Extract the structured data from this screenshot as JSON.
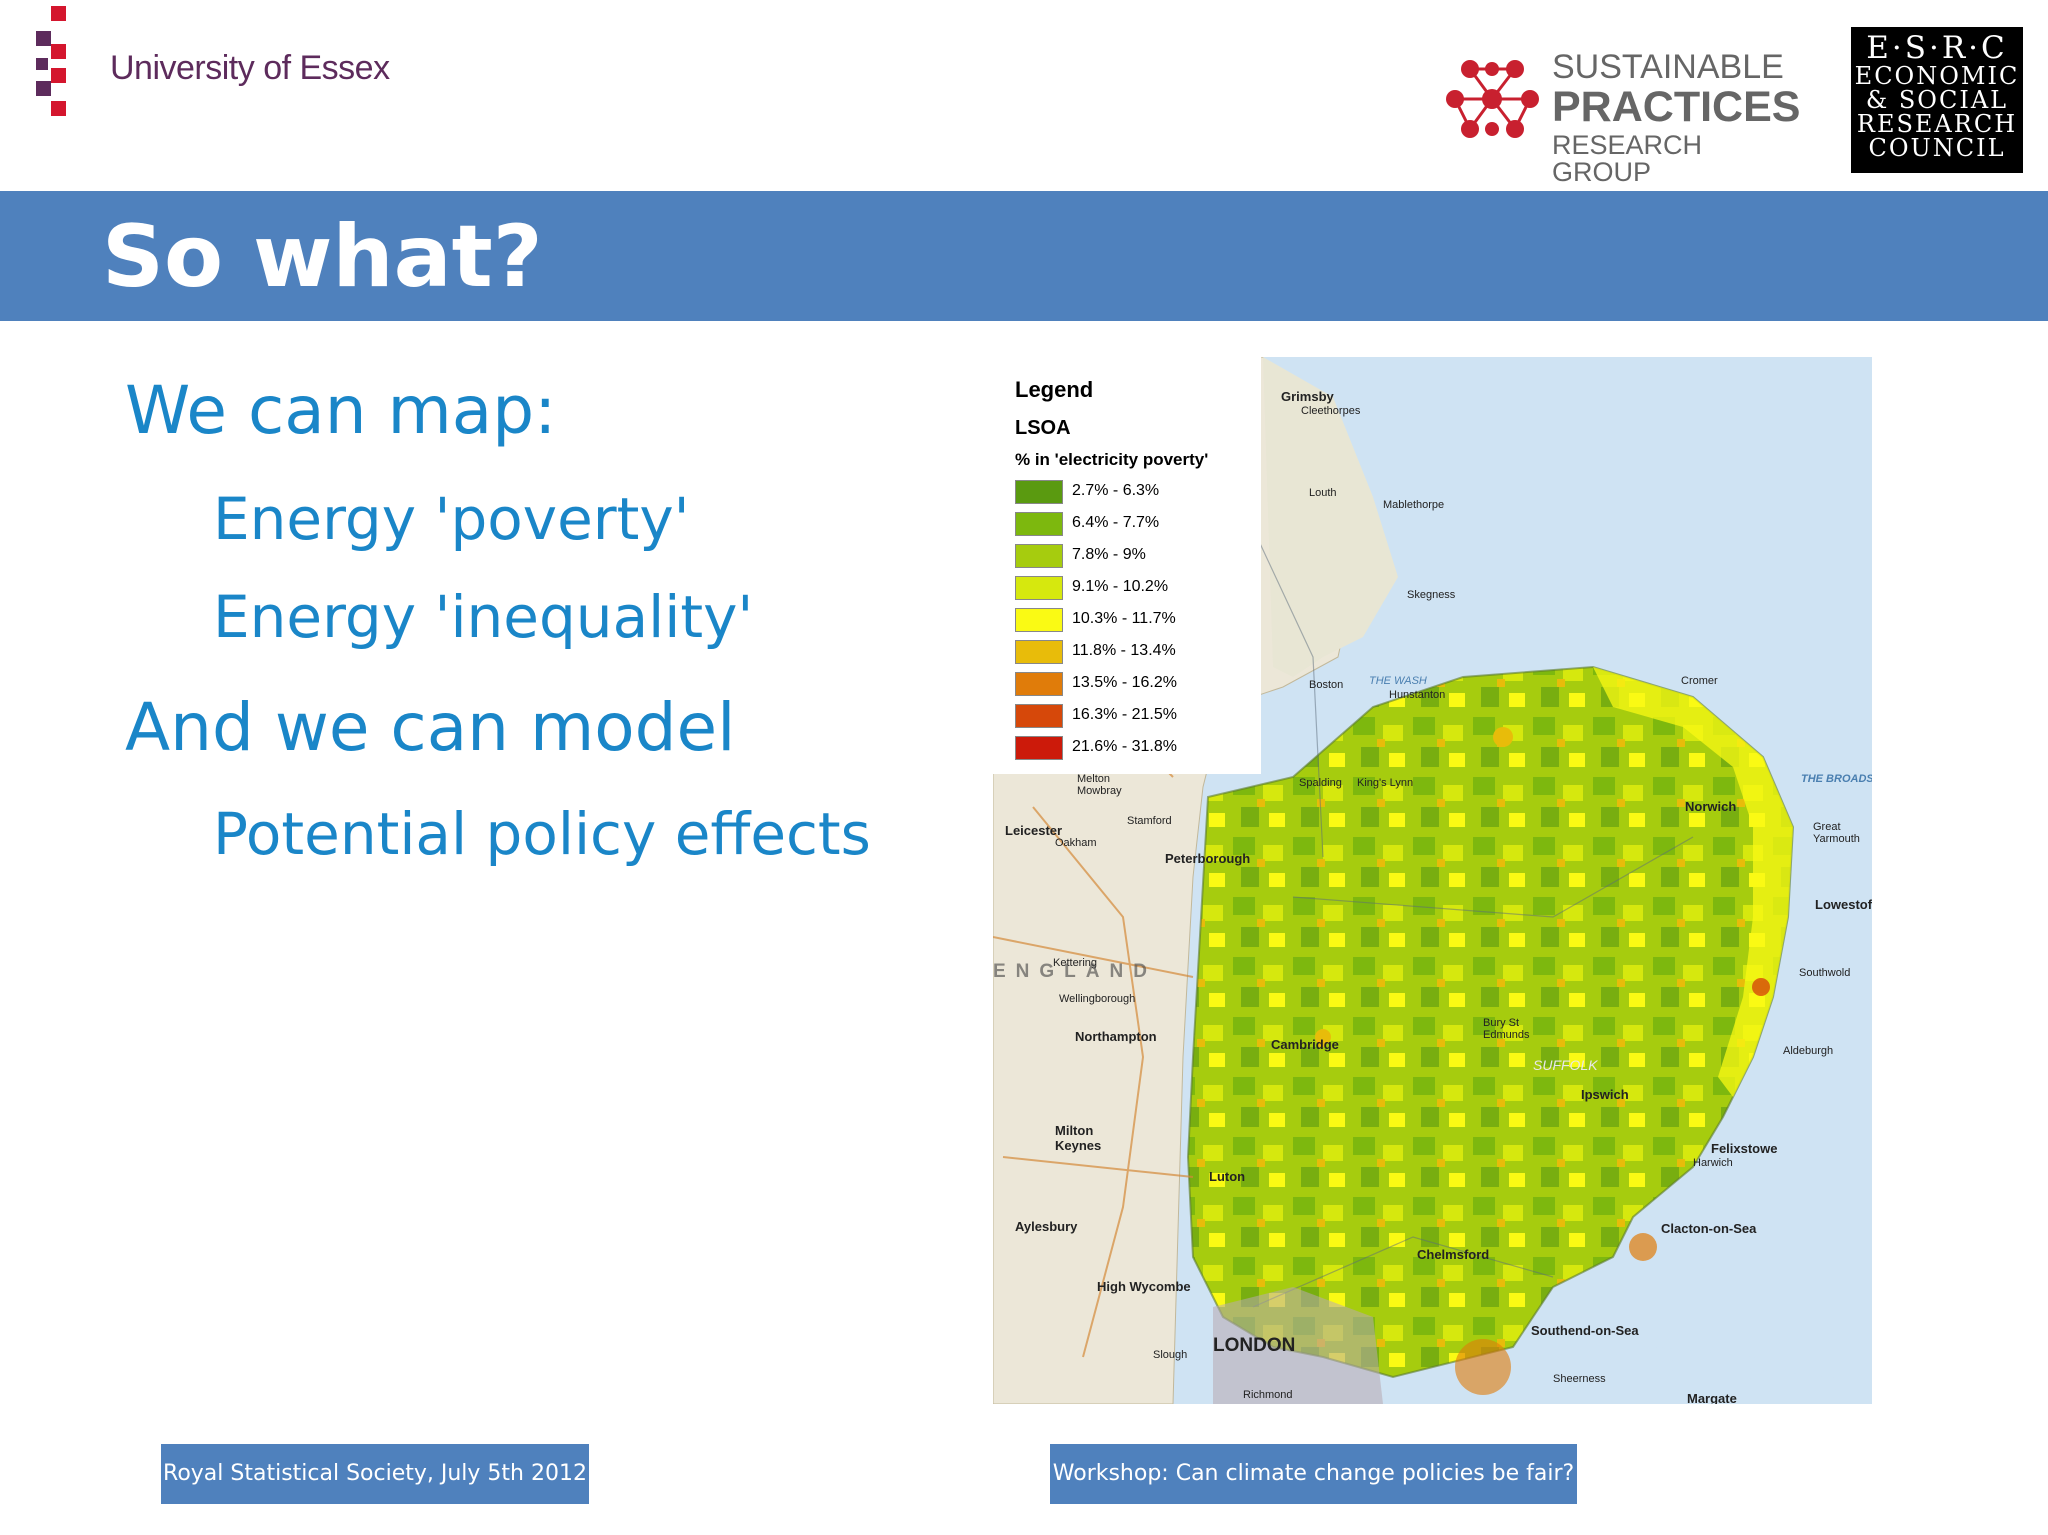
{
  "header": {
    "university": "University of Essex",
    "sprg_line1": "SUSTAINABLE",
    "sprg_line2": "PRACTICES",
    "sprg_line3": "RESEARCH GROUP",
    "esrc_line1": "E·S·R·C",
    "esrc_line2": "ECONOMIC",
    "esrc_line3": "& SOCIAL",
    "esrc_line4": "RESEARCH",
    "esrc_line5": "COUNCIL"
  },
  "title": "So what?",
  "bullets": {
    "b1": "We can map:",
    "b2": "Energy 'poverty'",
    "b3": "Energy 'inequality'",
    "b4": "And we can model",
    "b5": "Potential policy effects"
  },
  "legend": {
    "title": "Legend",
    "layer": "LSOA",
    "metric": "% in 'electricity poverty'",
    "items": [
      {
        "label": "2.7% - 6.3%",
        "color": "#5a9a10"
      },
      {
        "label": "6.4% - 7.7%",
        "color": "#7db80e"
      },
      {
        "label": "7.8% - 9%",
        "color": "#a6cc0e"
      },
      {
        "label": "9.1% - 10.2%",
        "color": "#d6e80e"
      },
      {
        "label": "10.3% - 11.7%",
        "color": "#fafa14"
      },
      {
        "label": "11.8% - 13.4%",
        "color": "#e8bc0a"
      },
      {
        "label": "13.5% - 16.2%",
        "color": "#e07c0a"
      },
      {
        "label": "16.3% - 21.5%",
        "color": "#d6480a"
      },
      {
        "label": "21.6% - 31.8%",
        "color": "#cc1a0a"
      }
    ]
  },
  "map_places": {
    "grimsby": "Grimsby",
    "cleethorpes": "Cleethorpes",
    "louth": "Louth",
    "mablethorpe": "Mablethorpe",
    "skegness": "Skegness",
    "boston": "Boston",
    "the_wash": "THE WASH",
    "hunstanton": "Hunstanton",
    "cromer": "Cromer",
    "norwich": "Norwich",
    "great_yarmouth": "Great Yarmouth",
    "lowestoft": "Lowestoft",
    "the_broads": "THE BROADS",
    "southwold": "Southwold",
    "aldeburgh": "Aldeburgh",
    "felixstowe": "Felixstowe",
    "harwich": "Harwich",
    "clacton": "Clacton-on-Sea",
    "leicester": "Leicester",
    "peterborough": "Peterborough",
    "northampton": "Northampton",
    "cambridge": "Cambridge",
    "ipswich": "Ipswich",
    "milton_keynes": "Milton Keynes",
    "aylesbury": "Aylesbury",
    "luton": "Luton",
    "chelmsford": "Chelmsford",
    "london": "LONDON",
    "southend": "Southend-on-Sea",
    "england": "ENGLAND",
    "high_wycombe": "High Wycombe",
    "spalding": "Spalding",
    "kings_lynn": "King's Lynn",
    "bury": "Bury St Edmunds",
    "margate": "Margate",
    "sheerness": "Sheerness",
    "stamford": "Stamford",
    "oakham": "Oakham",
    "kettering": "Kettering",
    "wellingborough": "Wellingborough",
    "slough": "Slough",
    "richmond": "Richmond",
    "suffolk": "SUFFOLK",
    "melton": "Melton Mowbray"
  },
  "footer": {
    "left": "Royal Statistical Society, July 5th 2012",
    "right": "Workshop: Can climate change policies be fair?"
  }
}
